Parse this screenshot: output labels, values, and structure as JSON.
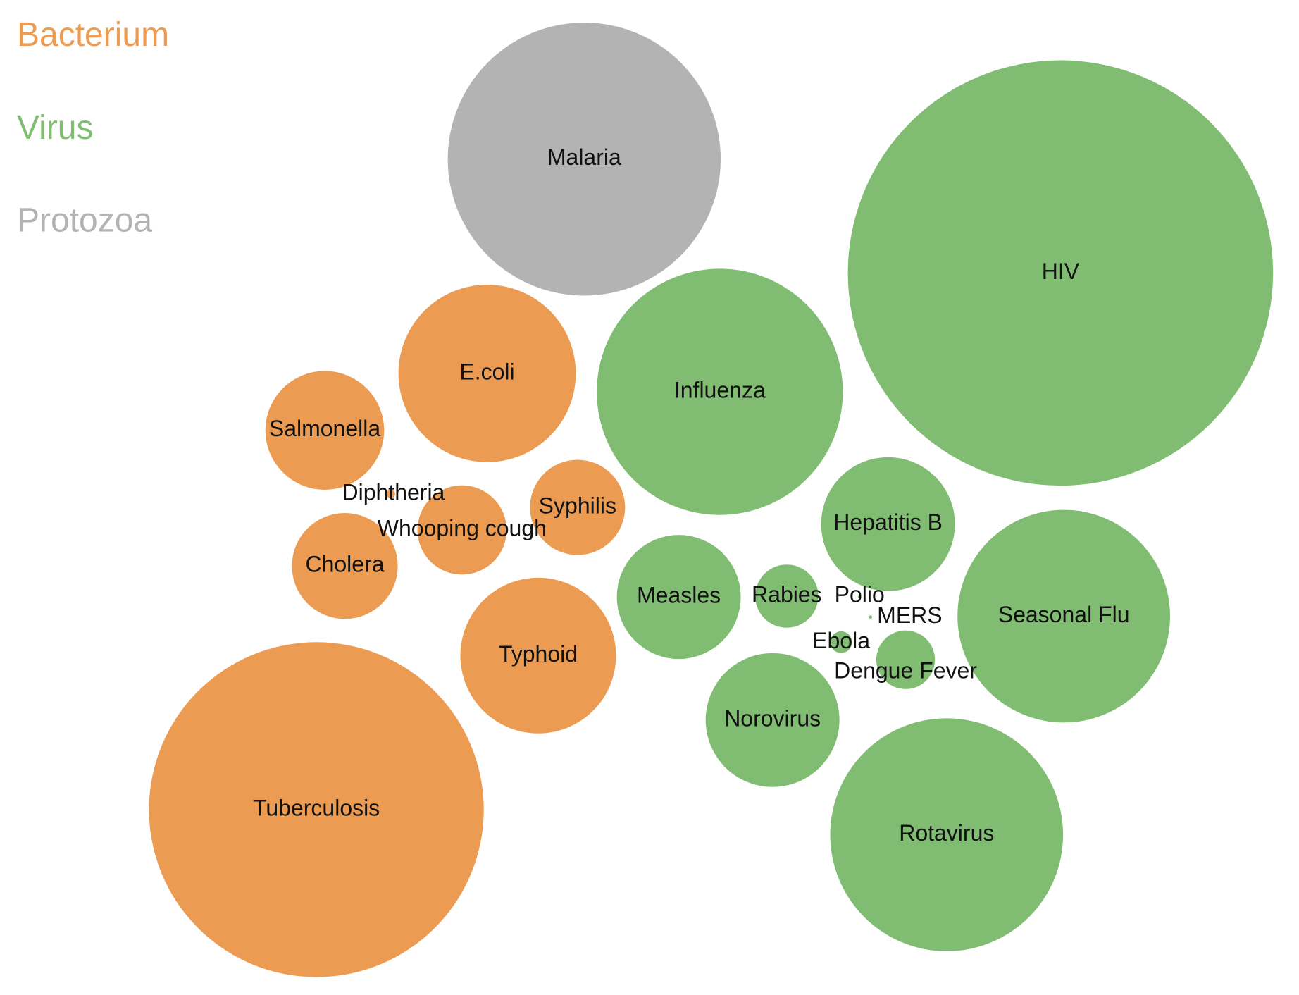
{
  "chart_data": {
    "type": "bubble",
    "series": [
      {
        "name": "Bacterium",
        "color": "#ec9b52",
        "labels": [
          "Tuberculosis",
          "E.coli",
          "Typhoid",
          "Salmonella",
          "Cholera",
          "Syphilis",
          "Whooping cough",
          "Diphtheria"
        ],
        "values": [
          620,
          174,
          134,
          78,
          62,
          50,
          44,
          0.4
        ]
      },
      {
        "name": "Virus",
        "color": "#80bd72",
        "labels": [
          "HIV",
          "Influenza",
          "Rotavirus",
          "Seasonal Flu",
          "Hepatitis B",
          "Norovirus",
          "Measles",
          "Rabies",
          "Dengue Fever",
          "Ebola",
          "Polio",
          "MERS"
        ],
        "values": [
          1000,
          335,
          300,
          250,
          99,
          99,
          85,
          22,
          19,
          2.6,
          0.06,
          0.06
        ]
      },
      {
        "name": "Protozoa",
        "color": "#b3b3b3",
        "labels": [
          "Malaria"
        ],
        "values": [
          412
        ]
      }
    ]
  }
}
